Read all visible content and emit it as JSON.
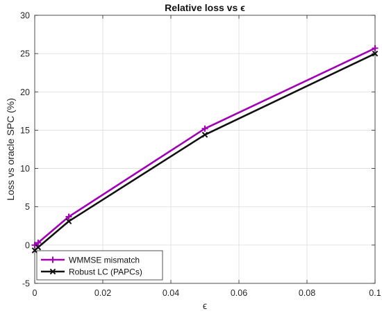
{
  "chart_data": {
    "type": "line",
    "title": "Relative loss vs ϵ",
    "xlabel": "ϵ",
    "ylabel": "Loss vs oracle SPC (%)",
    "xlim": [
      0,
      0.1
    ],
    "ylim": [
      -5,
      30
    ],
    "xticks": [
      0,
      0.02,
      0.04,
      0.06,
      0.08,
      0.1
    ],
    "xtick_labels": [
      "0",
      "0.02",
      "0.04",
      "0.06",
      "0.08",
      "0.1"
    ],
    "yticks": [
      -5,
      0,
      5,
      10,
      15,
      20,
      25,
      30
    ],
    "ytick_labels": [
      "-5",
      "0",
      "5",
      "10",
      "15",
      "20",
      "25",
      "30"
    ],
    "grid": true,
    "legend_position": "bottom-left",
    "series": [
      {
        "name": "WMMSE mismatch",
        "color": "#a100b5",
        "marker": "plus",
        "x": [
          0,
          0.001,
          0.01,
          0.05,
          0.1
        ],
        "y": [
          0.0,
          0.3,
          3.7,
          15.2,
          25.7
        ]
      },
      {
        "name": "Robust LC (PAPCs)",
        "color": "#111111",
        "marker": "x",
        "x": [
          0,
          0.001,
          0.01,
          0.05,
          0.1
        ],
        "y": [
          -0.7,
          -0.3,
          3.1,
          14.4,
          25.0
        ]
      }
    ]
  }
}
